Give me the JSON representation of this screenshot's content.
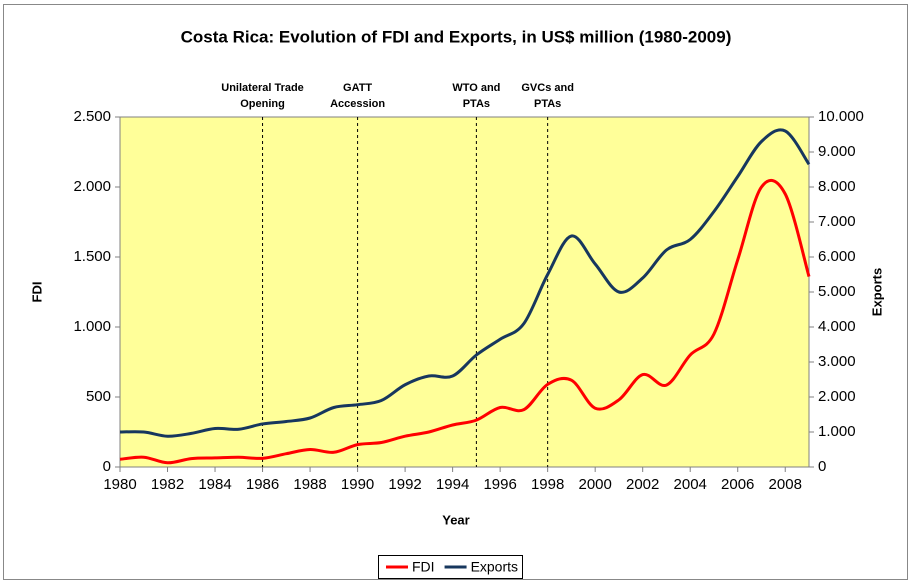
{
  "chart_data": {
    "type": "line",
    "title": "Costa Rica: Evolution of FDI and Exports, in US$ million (1980-2009)",
    "x_label": "Year",
    "y_label": "FDI",
    "y2_label": "Exports",
    "x": [
      1980,
      1981,
      1982,
      1983,
      1984,
      1985,
      1986,
      1987,
      1988,
      1989,
      1990,
      1991,
      1992,
      1993,
      1994,
      1995,
      1996,
      1997,
      1998,
      1999,
      2000,
      2001,
      2002,
      2003,
      2004,
      2005,
      2006,
      2007,
      2008,
      2009
    ],
    "series": [
      {
        "name": "FDI",
        "color": "#ff0000",
        "values": [
          55,
          70,
          30,
          60,
          65,
          70,
          62,
          95,
          125,
          105,
          160,
          175,
          220,
          250,
          300,
          335,
          425,
          410,
          590,
          620,
          420,
          480,
          660,
          585,
          800,
          950,
          1480,
          2000,
          1950,
          1360
        ]
      },
      {
        "name": "Exports",
        "color": "#17375e",
        "axis": "y2",
        "values": [
          1000,
          1000,
          880,
          960,
          1100,
          1080,
          1230,
          1300,
          1400,
          1700,
          1780,
          1900,
          2350,
          2600,
          2600,
          3200,
          3650,
          4100,
          5500,
          6600,
          5800,
          5000,
          5400,
          6200,
          6500,
          7300,
          8300,
          9300,
          9600,
          8650
        ]
      }
    ],
    "xlim": [
      1980,
      2009
    ],
    "xticks": [
      1980,
      1982,
      1984,
      1986,
      1988,
      1990,
      1992,
      1994,
      1996,
      1998,
      2000,
      2002,
      2004,
      2006,
      2008
    ],
    "ylim": [
      0,
      2500
    ],
    "yticks": [
      0,
      500,
      {
        "value": 1000,
        "label": "1.000"
      },
      {
        "value": 1500,
        "label": "1.500"
      },
      {
        "value": 2000,
        "label": "2.000"
      },
      {
        "value": 2500,
        "label": "2.500"
      }
    ],
    "y2lim": [
      0,
      10000
    ],
    "y2ticks": [
      0,
      {
        "value": 1000,
        "label": "1.000"
      },
      {
        "value": 2000,
        "label": "2.000"
      },
      {
        "value": 3000,
        "label": "3.000"
      },
      {
        "value": 4000,
        "label": "4.000"
      },
      {
        "value": 5000,
        "label": "5.000"
      },
      {
        "value": 6000,
        "label": "6.000"
      },
      {
        "value": 7000,
        "label": "7.000"
      },
      {
        "value": 8000,
        "label": "8.000"
      },
      {
        "value": 9000,
        "label": "9.000"
      },
      {
        "value": 10000,
        "label": "10.000"
      }
    ],
    "annotations": [
      {
        "x": 1986,
        "lines": [
          "Unilateral Trade",
          "Opening"
        ]
      },
      {
        "x": 1990,
        "lines": [
          "GATT",
          "Accession"
        ]
      },
      {
        "x": 1995,
        "lines": [
          "WTO and",
          "PTAs"
        ]
      },
      {
        "x": 1998,
        "lines": [
          "GVCs and",
          "PTAs"
        ]
      }
    ],
    "plot_background": "#ffff99",
    "legend": "bottom"
  }
}
